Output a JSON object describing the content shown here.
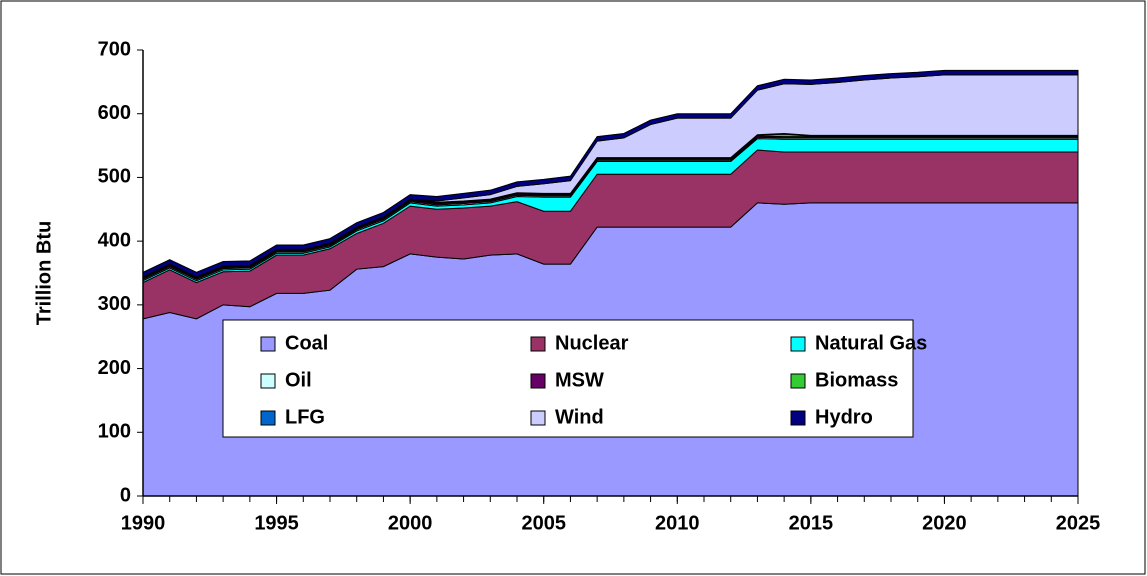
{
  "chart_data": {
    "type": "stacked_area",
    "y_label": "Trillion Btu",
    "x": [
      1990,
      1991,
      1992,
      1993,
      1994,
      1995,
      1996,
      1997,
      1998,
      1999,
      2000,
      2001,
      2002,
      2003,
      2004,
      2005,
      2006,
      2007,
      2008,
      2009,
      2010,
      2011,
      2012,
      2013,
      2014,
      2015,
      2016,
      2017,
      2018,
      2019,
      2020,
      2021,
      2022,
      2023,
      2024,
      2025
    ],
    "xlim": [
      1990,
      2025
    ],
    "xticks": [
      1990,
      1995,
      2000,
      2005,
      2010,
      2015,
      2020,
      2025
    ],
    "ylim": [
      0,
      700
    ],
    "yticks": [
      0,
      100,
      200,
      300,
      400,
      500,
      600,
      700
    ],
    "legend": "inside-bottom",
    "series": [
      {
        "name": "Coal",
        "color": "#9999ff",
        "values": [
          278,
          288,
          278,
          300,
          297,
          318,
          318,
          323,
          356,
          360,
          380,
          375,
          372,
          378,
          380,
          364,
          364,
          422,
          422,
          422,
          422,
          422,
          422,
          460,
          458,
          460,
          460,
          460,
          460,
          460,
          460,
          460,
          460,
          460,
          460,
          460
        ]
      },
      {
        "name": "Nuclear",
        "color": "#993366",
        "values": [
          57,
          67,
          57,
          52,
          56,
          60,
          60,
          65,
          56,
          68,
          75,
          75,
          80,
          77,
          82,
          83,
          83,
          83,
          83,
          83,
          83,
          83,
          83,
          83,
          82,
          80,
          80,
          80,
          80,
          80,
          80,
          80,
          80,
          80,
          80,
          80
        ]
      },
      {
        "name": "Natural Gas",
        "color": "#00ffff",
        "values": [
          3,
          3,
          3,
          3,
          3,
          3,
          3,
          3,
          4,
          4,
          5,
          5,
          5,
          5,
          8,
          22,
          22,
          20,
          20,
          20,
          20,
          20,
          20,
          18,
          20,
          20,
          20,
          20,
          20,
          20,
          20,
          20,
          20,
          20,
          20,
          20
        ]
      },
      {
        "name": "Oil",
        "color": "#ccffff",
        "values": [
          2,
          2,
          2,
          2,
          2,
          2,
          2,
          2,
          2,
          2,
          2,
          2,
          2,
          2,
          2,
          2,
          2,
          2,
          2,
          2,
          2,
          2,
          2,
          2,
          2,
          2,
          2,
          2,
          2,
          2,
          2,
          2,
          2,
          2,
          2,
          2
        ]
      },
      {
        "name": "MSW",
        "color": "#660066",
        "values": [
          2,
          2,
          2,
          2,
          2,
          2,
          2,
          2,
          2,
          2,
          2,
          2,
          2,
          2,
          2,
          2,
          2,
          2,
          2,
          2,
          2,
          2,
          2,
          2,
          2,
          2,
          2,
          2,
          2,
          2,
          2,
          2,
          2,
          2,
          2,
          2
        ]
      },
      {
        "name": "Biomass",
        "color": "#33cc33",
        "values": [
          1,
          1,
          1,
          1,
          1,
          1,
          1,
          1,
          1,
          1,
          1,
          1,
          1,
          1,
          1,
          1,
          1,
          1,
          1,
          1,
          1,
          1,
          1,
          1,
          4,
          1,
          1,
          1,
          1,
          1,
          1,
          1,
          1,
          1,
          1,
          1
        ]
      },
      {
        "name": "LFG",
        "color": "#0066cc",
        "values": [
          1,
          1,
          1,
          1,
          1,
          1,
          1,
          1,
          1,
          1,
          1,
          1,
          1,
          1,
          1,
          1,
          1,
          1,
          1,
          1,
          1,
          1,
          1,
          1,
          1,
          1,
          1,
          1,
          1,
          1,
          1,
          1,
          1,
          1,
          1,
          1
        ]
      },
      {
        "name": "Wind",
        "color": "#ccccff",
        "values": [
          0,
          0,
          0,
          0,
          0,
          0,
          0,
          0,
          0,
          0,
          0,
          2,
          5,
          7,
          10,
          15,
          20,
          26,
          31,
          52,
          62,
          62,
          62,
          70,
          78,
          80,
          83,
          87,
          90,
          92,
          95,
          95,
          95,
          95,
          95,
          95
        ]
      },
      {
        "name": "Hydro",
        "color": "#000080",
        "values": [
          7,
          7,
          7,
          7,
          7,
          7,
          7,
          7,
          7,
          7,
          7,
          7,
          7,
          7,
          7,
          7,
          7,
          7,
          7,
          7,
          7,
          7,
          7,
          7,
          7,
          7,
          7,
          7,
          7,
          7,
          7,
          7,
          7,
          7,
          7,
          7
        ]
      }
    ]
  }
}
